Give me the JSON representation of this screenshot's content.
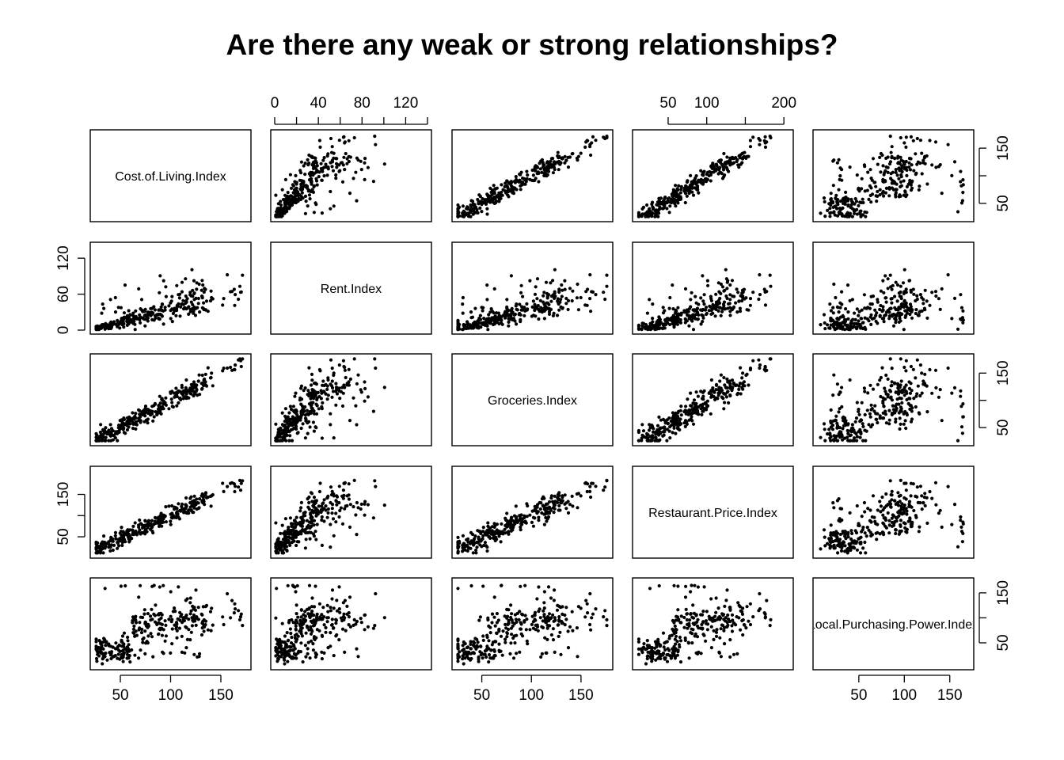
{
  "title": "Are there any weak or strong relationships?",
  "chart_data": {
    "type": "scatter",
    "kind": "scatterplot-matrix",
    "title": "Are there any weak or strong relationships?",
    "variables": [
      {
        "name": "Cost.of.Living.Index",
        "range": [
          24,
          176
        ]
      },
      {
        "name": "Rent.Index",
        "range": [
          0,
          140
        ]
      },
      {
        "name": "Groceries.Index",
        "range": [
          24,
          178
        ]
      },
      {
        "name": "Restaurant.Price.Index",
        "range": [
          9,
          207
        ]
      },
      {
        "name": "Local.Purchasing.Power.Index",
        "range": [
          4,
          172
        ]
      }
    ],
    "axes": {
      "top": [
        {
          "column": 1,
          "ticks": [
            0,
            40,
            80,
            120
          ],
          "minor_ticks": [
            20,
            60,
            100,
            140
          ]
        },
        {
          "column": 3,
          "ticks": [
            50,
            100,
            200
          ],
          "minor_ticks": [
            150
          ]
        }
      ],
      "bottom": [
        {
          "column": 0,
          "ticks": [
            50,
            100,
            150
          ]
        },
        {
          "column": 2,
          "ticks": [
            50,
            100,
            150
          ]
        },
        {
          "column": 4,
          "ticks": [
            50,
            100,
            150
          ]
        }
      ],
      "left": [
        {
          "row": 1,
          "ticks": [
            0,
            60,
            120
          ]
        },
        {
          "row": 3,
          "ticks": [
            50,
            150
          ],
          "minor_ticks": [
            100
          ]
        }
      ],
      "right": [
        {
          "row": 0,
          "ticks": [
            50,
            150
          ],
          "minor_ticks": [
            100
          ]
        },
        {
          "row": 2,
          "ticks": [
            50,
            150
          ],
          "minor_ticks": [
            100
          ]
        },
        {
          "row": 4,
          "ticks": [
            50,
            150
          ],
          "minor_ticks": [
            100
          ]
        }
      ]
    },
    "point_count": 300,
    "points_note": "approximate synthetic reconstruction of the depicted point clouds",
    "points": [],
    "grid": false,
    "legend": "none"
  }
}
